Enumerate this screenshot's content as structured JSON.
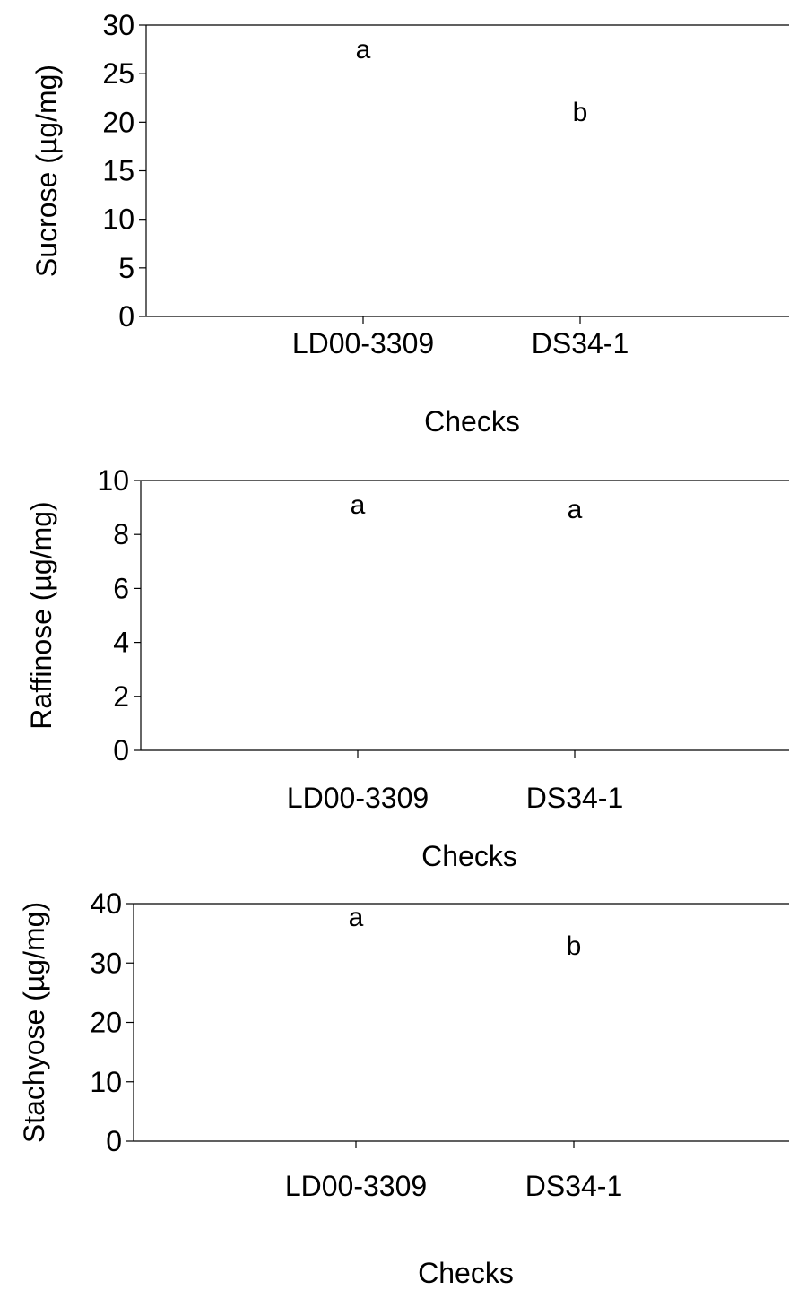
{
  "chart_data": [
    {
      "type": "bar",
      "categories": [
        "LD00-3309",
        "DS34-1"
      ],
      "significance_letters": [
        "a",
        "b"
      ],
      "xlabel": "Checks",
      "ylabel": "Sucrose (µg/mg)",
      "ylim": [
        0,
        30
      ],
      "yticks": [
        "0",
        "5",
        "10",
        "15",
        "20",
        "25",
        "30"
      ],
      "grid": false
    },
    {
      "type": "bar",
      "categories": [
        "LD00-3309",
        "DS34-1"
      ],
      "significance_letters": [
        "a",
        "a"
      ],
      "xlabel": "Checks",
      "ylabel": "Raffinose (µg/mg)",
      "ylim": [
        0,
        10
      ],
      "yticks": [
        "0",
        "2",
        "4",
        "6",
        "8",
        "10"
      ],
      "grid": false
    },
    {
      "type": "bar",
      "categories": [
        "LD00-3309",
        "DS34-1"
      ],
      "significance_letters": [
        "a",
        "b"
      ],
      "xlabel": "Checks",
      "ylabel": "Stachyose (µg/mg)",
      "ylim": [
        0,
        40
      ],
      "yticks": [
        "0",
        "10",
        "20",
        "30",
        "40"
      ],
      "grid": false
    }
  ]
}
